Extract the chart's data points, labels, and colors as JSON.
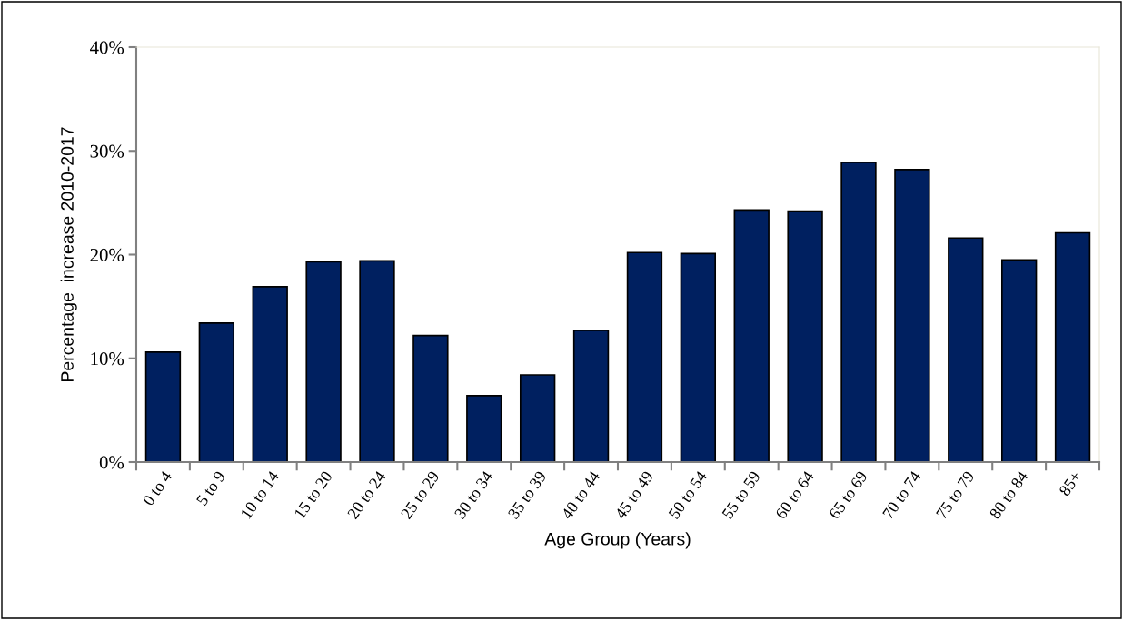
{
  "chart_data": {
    "type": "bar",
    "xlabel": "Age Group (Years)",
    "ylabel": "Percentage  increase 2010-2017",
    "categories": [
      "0 to 4",
      "5 to 9",
      "10 to 14",
      "15 to 20",
      "20 to 24",
      "25 to 29",
      "30 to 34",
      "35 to 39",
      "40 to 44",
      "45 to 49",
      "50 to 54",
      "55 to 59",
      "60 to 64",
      "65 to 69",
      "70 to 74",
      "75 to 79",
      "80 to 84",
      "85+"
    ],
    "values": [
      10.6,
      13.4,
      16.9,
      19.3,
      19.4,
      12.2,
      6.4,
      8.4,
      12.7,
      20.2,
      20.1,
      24.3,
      24.2,
      28.9,
      28.2,
      21.6,
      19.5,
      22.1
    ],
    "color": "#002060",
    "ylim": [
      0,
      40
    ],
    "yticks": [
      {
        "value": 0,
        "label": "0%"
      },
      {
        "value": 10,
        "label": "10%"
      },
      {
        "value": 20,
        "label": "20%"
      },
      {
        "value": 30,
        "label": "30%"
      },
      {
        "value": 40,
        "label": "40%"
      }
    ],
    "grid": false,
    "legend": false
  }
}
